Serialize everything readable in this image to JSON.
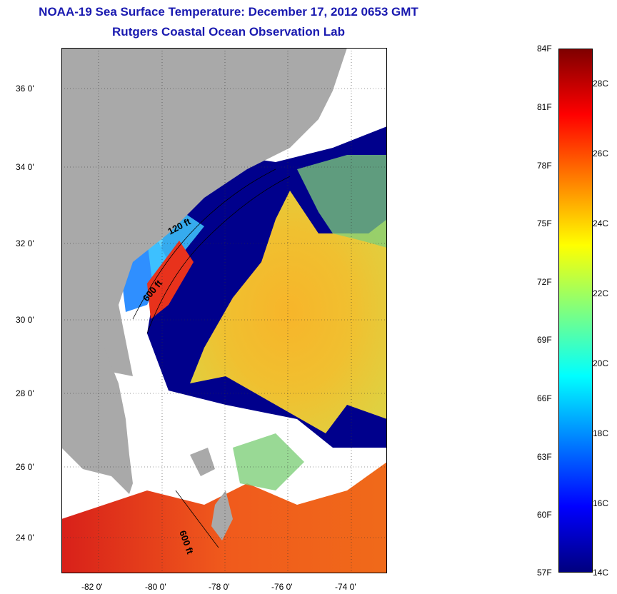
{
  "title": {
    "line1": "NOAA-19 Sea Surface Temperature:  December 17, 2012 0653 GMT",
    "line2": "Rutgers Coastal Ocean Observation Lab"
  },
  "map": {
    "lat_ticks": [
      "36 0'",
      "34 0'",
      "32 0'",
      "30 0'",
      "28 0'",
      "26 0'",
      "24 0'"
    ],
    "lon_ticks": [
      "-82 0'",
      "-80 0'",
      "-78 0'",
      "-76 0'",
      "-74 0'"
    ],
    "isobath_labels": [
      "120 ft",
      "600 ft",
      "600 ft"
    ],
    "colors": {
      "land": "#a9a9a9",
      "cloud": "#ffffff",
      "cold": "#00008c",
      "warm": "#f5a623",
      "hot": "#e8321c"
    }
  },
  "colorbar": {
    "fahrenheit": [
      "84F",
      "81F",
      "78F",
      "75F",
      "72F",
      "69F",
      "66F",
      "63F",
      "60F",
      "57F"
    ],
    "celsius": [
      "28C",
      "26C",
      "24C",
      "22C",
      "20C",
      "18C",
      "16C",
      "14C"
    ],
    "gradient": [
      "#00007f",
      "#0000ff",
      "#007fff",
      "#00ffff",
      "#7fff7f",
      "#ffff00",
      "#ff7f00",
      "#ff0000",
      "#7f0000"
    ]
  }
}
